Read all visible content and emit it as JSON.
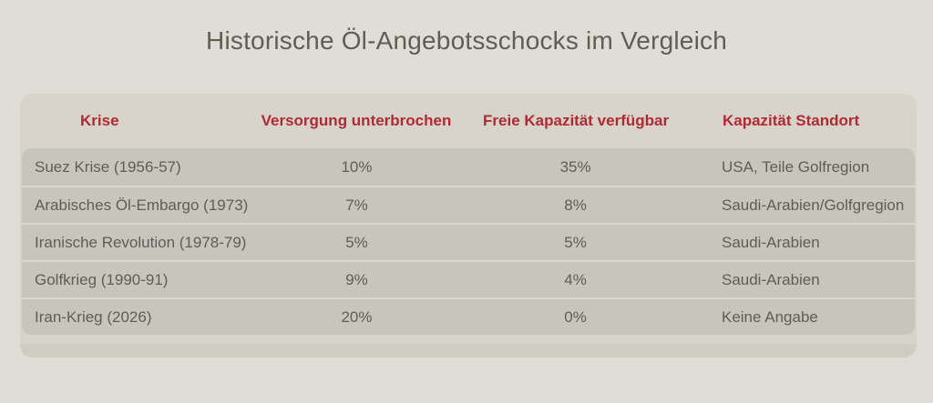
{
  "chart_data": {
    "type": "table",
    "title": "Historische Öl-Angebotsschocks im Vergleich",
    "columns": [
      "Krise",
      "Versorgung unterbrochen",
      "Freie Kapazität verfügbar",
      "Kapazität Standort"
    ],
    "rows": [
      [
        "Suez Krise (1956-57)",
        "10%",
        "35%",
        "USA, Teile Golfregion"
      ],
      [
        "Arabisches Öl-Embargo (1973)",
        "7%",
        "8%",
        "Saudi-Arabien/Golfgregion"
      ],
      [
        "Iranische Revolution (1978-79)",
        "5%",
        "5%",
        "Saudi-Arabien"
      ],
      [
        "Golfkrieg (1990-91)",
        "9%",
        "4%",
        "Saudi-Arabien"
      ],
      [
        "Iran-Krieg (2026)",
        "20%",
        "0%",
        "Keine Angabe"
      ]
    ],
    "legend": "none",
    "grid": "horizontal-separators"
  },
  "colors": {
    "page_background": "#e0ddd6",
    "card_background": "#d8d4cc",
    "row_background": "#c8c5bd",
    "row_separator": "#dad7cf",
    "footer_strip": "#cfccc4",
    "header_text": "#b02a33",
    "body_text": "#5f5d57",
    "title_text": "#605d56"
  }
}
